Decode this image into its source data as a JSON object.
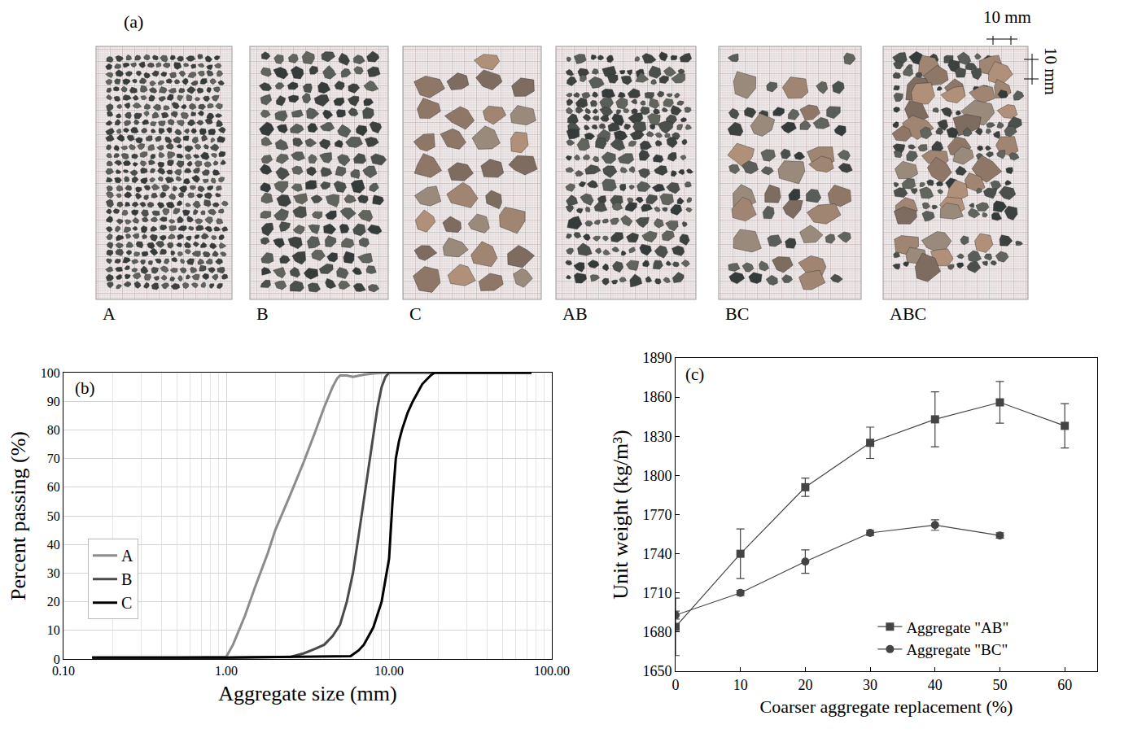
{
  "photo_panel": {
    "letter": "(a)",
    "labels": [
      "A",
      "B",
      "C",
      "AB",
      "BC",
      "ABC"
    ],
    "scale_labels": [
      "10 mm",
      "10 mm"
    ]
  },
  "chart_data": [
    {
      "type": "line",
      "title": "(b)",
      "x_label": "Aggregate size (mm)",
      "y_label": "Percent passing (%)",
      "log": "x",
      "grid": true,
      "legend": "left",
      "xlim": [
        0.1,
        100
      ],
      "xticks": [
        {
          "value": 0.1,
          "label": "0.10"
        },
        {
          "value": 1,
          "label": "1.00"
        },
        {
          "value": 10,
          "label": "10.00"
        },
        {
          "value": 100,
          "label": "100.00"
        }
      ],
      "ylim": [
        0,
        100
      ],
      "yticks": [
        0,
        10,
        20,
        30,
        40,
        50,
        60,
        70,
        80,
        90,
        100
      ],
      "series": [
        {
          "name": "A",
          "color": "#8c8c8c",
          "x": [
            0.15,
            0.5,
            1.0,
            1.1,
            1.3,
            1.5,
            1.8,
            2.0,
            2.5,
            3.0,
            3.5,
            4.0,
            4.5,
            4.8,
            5.0,
            5.5,
            6.0,
            7.0,
            8.0,
            10.0,
            20.0,
            75.0
          ],
          "values": [
            0.5,
            0.5,
            0.8,
            5,
            15,
            25,
            37,
            45,
            58,
            69,
            79,
            88,
            95,
            98,
            99,
            99,
            98.5,
            99.3,
            99.7,
            100,
            100,
            100
          ]
        },
        {
          "name": "B",
          "color": "#4a4a4a",
          "x": [
            0.15,
            1.0,
            2.5,
            3.0,
            3.5,
            4.0,
            4.5,
            5.0,
            5.5,
            6.0,
            6.5,
            7.0,
            7.5,
            8.0,
            8.5,
            9.0,
            9.5,
            10.0,
            20.0,
            75.0
          ],
          "values": [
            0.5,
            0.5,
            0.8,
            2,
            3.5,
            5,
            8,
            12,
            20,
            30,
            43,
            55,
            67,
            78,
            88,
            95,
            98.5,
            100,
            100,
            100
          ]
        },
        {
          "name": "C",
          "color": "#000000",
          "x": [
            0.15,
            1.0,
            5.8,
            6.5,
            7.0,
            7.5,
            8.0,
            9.0,
            10.0,
            10.5,
            11.0,
            11.5,
            12.0,
            13.0,
            14.0,
            16.0,
            18.0,
            19.0,
            75.0
          ],
          "values": [
            0.5,
            0.5,
            1,
            3,
            5,
            8,
            11,
            20,
            35,
            55,
            70,
            76,
            80,
            86,
            90,
            96,
            99,
            100,
            100
          ]
        }
      ]
    },
    {
      "type": "line",
      "title": "(c)",
      "x_label": "Coarser aggregate replacement (%)",
      "y_label": "Unit weight (kg/m³)",
      "grid": false,
      "legend": "lower right",
      "xlim": [
        0,
        65
      ],
      "xticks": [
        0,
        10,
        20,
        30,
        40,
        50,
        60
      ],
      "ylim": [
        1650,
        1890
      ],
      "yticks": [
        1650,
        1680,
        1710,
        1740,
        1770,
        1800,
        1830,
        1860,
        1890
      ],
      "series": [
        {
          "name": "Aggregate \"AB\"",
          "color": "#444444",
          "marker": "square",
          "x": [
            0,
            10,
            20,
            30,
            40,
            50,
            60
          ],
          "values": [
            1684,
            1740,
            1791,
            1825,
            1843,
            1856,
            1838
          ],
          "errors": [
            22,
            19,
            7,
            12,
            21,
            16,
            17
          ]
        },
        {
          "name": "Aggregate \"BC\"",
          "color": "#444444",
          "marker": "circle",
          "x": [
            0,
            10,
            20,
            30,
            40,
            50
          ],
          "values": [
            1693,
            1710,
            1734,
            1756,
            1762,
            1754
          ],
          "errors": [
            3,
            2,
            9,
            2,
            4,
            2
          ]
        }
      ]
    }
  ]
}
